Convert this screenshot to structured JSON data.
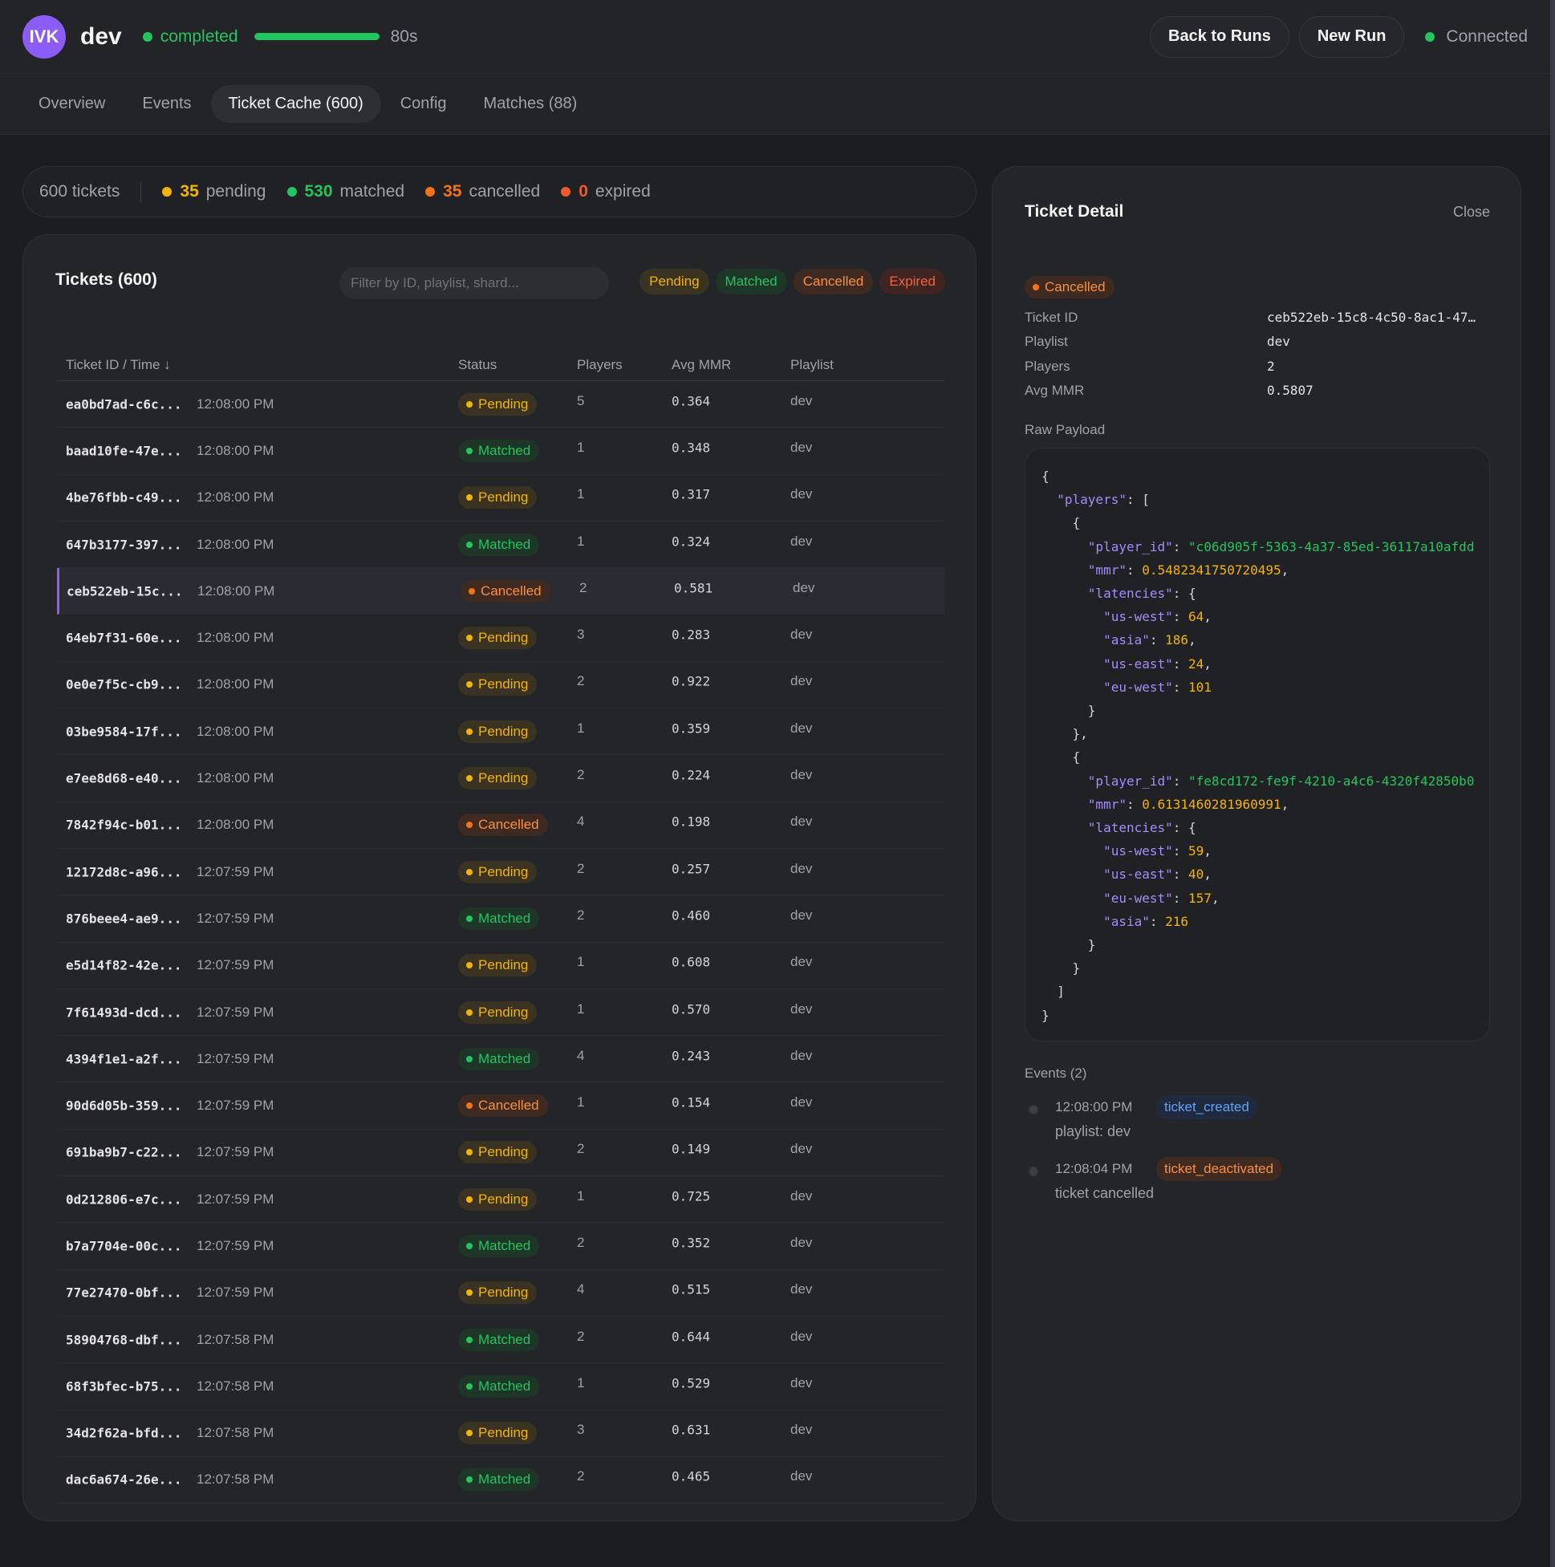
{
  "header": {
    "avatar": "IVK",
    "title": "dev",
    "run_status": "completed",
    "progress_pct": 100,
    "duration": "80s",
    "back_button": "Back to Runs",
    "new_run_button": "New Run",
    "connection": "Connected"
  },
  "tabs": [
    {
      "label": "Overview"
    },
    {
      "label": "Events"
    },
    {
      "label": "Ticket Cache (600)",
      "active": true
    },
    {
      "label": "Config"
    },
    {
      "label": "Matches (88)"
    }
  ],
  "summary": {
    "total": "600 tickets",
    "items": [
      {
        "count": "35",
        "label": "pending",
        "color": "#f5b400"
      },
      {
        "count": "530",
        "label": "matched",
        "color": "#22c55e"
      },
      {
        "count": "35",
        "label": "cancelled",
        "color": "#f97316"
      },
      {
        "count": "0",
        "label": "expired",
        "color": "#ef5a2a"
      }
    ]
  },
  "tickets": {
    "title": "Tickets (600)",
    "filter_placeholder": "Filter by ID, playlist, shard...",
    "chips": [
      {
        "label": "Pending",
        "bg": "#3a3322",
        "fg": "#f5b400"
      },
      {
        "label": "Matched",
        "bg": "#1d3628",
        "fg": "#22c55e"
      },
      {
        "label": "Cancelled",
        "bg": "#3f2a22",
        "fg": "#fb8f3f"
      },
      {
        "label": "Expired",
        "bg": "#3f2422",
        "fg": "#f0643c"
      }
    ],
    "columns": {
      "id_time": "Ticket ID / Time ↓",
      "status": "Status",
      "players": "Players",
      "avg_mmr": "Avg MMR",
      "playlist": "Playlist"
    },
    "rows": [
      {
        "id": "ea0bd7ad-c6c...",
        "time": "12:08:00 PM",
        "status": "Pending",
        "players": "5",
        "mmr": "0.364",
        "playlist": "dev"
      },
      {
        "id": "baad10fe-47e...",
        "time": "12:08:00 PM",
        "status": "Matched",
        "players": "1",
        "mmr": "0.348",
        "playlist": "dev"
      },
      {
        "id": "4be76fbb-c49...",
        "time": "12:08:00 PM",
        "status": "Pending",
        "players": "1",
        "mmr": "0.317",
        "playlist": "dev"
      },
      {
        "id": "647b3177-397...",
        "time": "12:08:00 PM",
        "status": "Matched",
        "players": "1",
        "mmr": "0.324",
        "playlist": "dev"
      },
      {
        "id": "ceb522eb-15c...",
        "time": "12:08:00 PM",
        "status": "Cancelled",
        "players": "2",
        "mmr": "0.581",
        "playlist": "dev",
        "selected": true
      },
      {
        "id": "64eb7f31-60e...",
        "time": "12:08:00 PM",
        "status": "Pending",
        "players": "3",
        "mmr": "0.283",
        "playlist": "dev"
      },
      {
        "id": "0e0e7f5c-cb9...",
        "time": "12:08:00 PM",
        "status": "Pending",
        "players": "2",
        "mmr": "0.922",
        "playlist": "dev"
      },
      {
        "id": "03be9584-17f...",
        "time": "12:08:00 PM",
        "status": "Pending",
        "players": "1",
        "mmr": "0.359",
        "playlist": "dev"
      },
      {
        "id": "e7ee8d68-e40...",
        "time": "12:08:00 PM",
        "status": "Pending",
        "players": "2",
        "mmr": "0.224",
        "playlist": "dev"
      },
      {
        "id": "7842f94c-b01...",
        "time": "12:08:00 PM",
        "status": "Cancelled",
        "players": "4",
        "mmr": "0.198",
        "playlist": "dev"
      },
      {
        "id": "12172d8c-a96...",
        "time": "12:07:59 PM",
        "status": "Pending",
        "players": "2",
        "mmr": "0.257",
        "playlist": "dev"
      },
      {
        "id": "876beee4-ae9...",
        "time": "12:07:59 PM",
        "status": "Matched",
        "players": "2",
        "mmr": "0.460",
        "playlist": "dev"
      },
      {
        "id": "e5d14f82-42e...",
        "time": "12:07:59 PM",
        "status": "Pending",
        "players": "1",
        "mmr": "0.608",
        "playlist": "dev"
      },
      {
        "id": "7f61493d-dcd...",
        "time": "12:07:59 PM",
        "status": "Pending",
        "players": "1",
        "mmr": "0.570",
        "playlist": "dev"
      },
      {
        "id": "4394f1e1-a2f...",
        "time": "12:07:59 PM",
        "status": "Matched",
        "players": "4",
        "mmr": "0.243",
        "playlist": "dev"
      },
      {
        "id": "90d6d05b-359...",
        "time": "12:07:59 PM",
        "status": "Cancelled",
        "players": "1",
        "mmr": "0.154",
        "playlist": "dev"
      },
      {
        "id": "691ba9b7-c22...",
        "time": "12:07:59 PM",
        "status": "Pending",
        "players": "2",
        "mmr": "0.149",
        "playlist": "dev"
      },
      {
        "id": "0d212806-e7c...",
        "time": "12:07:59 PM",
        "status": "Pending",
        "players": "1",
        "mmr": "0.725",
        "playlist": "dev"
      },
      {
        "id": "b7a7704e-00c...",
        "time": "12:07:59 PM",
        "status": "Matched",
        "players": "2",
        "mmr": "0.352",
        "playlist": "dev"
      },
      {
        "id": "77e27470-0bf...",
        "time": "12:07:59 PM",
        "status": "Pending",
        "players": "4",
        "mmr": "0.515",
        "playlist": "dev"
      },
      {
        "id": "58904768-dbf...",
        "time": "12:07:58 PM",
        "status": "Matched",
        "players": "2",
        "mmr": "0.644",
        "playlist": "dev"
      },
      {
        "id": "68f3bfec-b75...",
        "time": "12:07:58 PM",
        "status": "Matched",
        "players": "1",
        "mmr": "0.529",
        "playlist": "dev"
      },
      {
        "id": "34d2f62a-bfd...",
        "time": "12:07:58 PM",
        "status": "Pending",
        "players": "3",
        "mmr": "0.631",
        "playlist": "dev"
      },
      {
        "id": "dac6a674-26e...",
        "time": "12:07:58 PM",
        "status": "Matched",
        "players": "2",
        "mmr": "0.465",
        "playlist": "dev"
      }
    ]
  },
  "detail": {
    "title": "Ticket Detail",
    "close": "Close",
    "status": "Cancelled",
    "fields": [
      {
        "key": "Ticket ID",
        "value": "ceb522eb-15c8-4c50-8ac1-47…"
      },
      {
        "key": "Playlist",
        "value": "dev"
      },
      {
        "key": "Players",
        "value": "2"
      },
      {
        "key": "Avg MMR",
        "value": "0.5807"
      }
    ],
    "raw_label": "Raw Payload",
    "payload": {
      "player1_id": "\"c06d905f-5363-4a37-85ed-36117a10afdd",
      "player1_mmr": "0.5482341750720495",
      "player1_lat": [
        [
          "us-west",
          "64"
        ],
        [
          "asia",
          "186"
        ],
        [
          "us-east",
          "24"
        ],
        [
          "eu-west",
          "101"
        ]
      ],
      "player2_id": "\"fe8cd172-fe9f-4210-a4c6-4320f42850b0",
      "player2_mmr": "0.6131460281960991",
      "player2_lat": [
        [
          "us-west",
          "59"
        ],
        [
          "us-east",
          "40"
        ],
        [
          "eu-west",
          "157"
        ],
        [
          "asia",
          "216"
        ]
      ]
    },
    "events_label": "Events (2)",
    "events": [
      {
        "time": "12:08:00 PM",
        "type": "ticket_created",
        "desc": "playlist: dev"
      },
      {
        "time": "12:08:04 PM",
        "type": "ticket_deactivated",
        "desc": "ticket cancelled"
      }
    ]
  }
}
